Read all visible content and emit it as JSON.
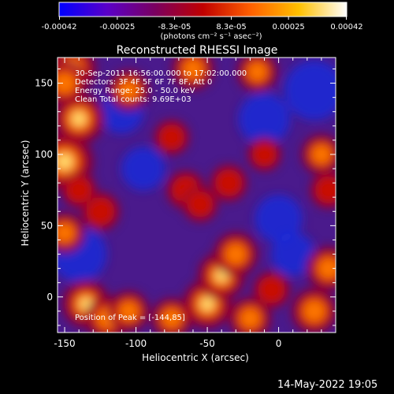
{
  "colorbar": {
    "tick_labels": [
      "-0.00042",
      "-0.00025",
      "-8.3e-05",
      "8.3e-05",
      "0.00025",
      "0.00042"
    ],
    "tick_values": [
      -0.00042,
      -0.00025,
      -8.3e-05,
      8.3e-05,
      0.00025,
      0.00042
    ],
    "range": [
      -0.00042,
      0.00042
    ],
    "units_text": "(photons cm⁻² s⁻¹ asec⁻²)",
    "colors": [
      "#0000ff",
      "#5a00c8",
      "#7a0060",
      "#c00000",
      "#ff6000",
      "#ffc000",
      "#ffffff"
    ]
  },
  "chart_data": {
    "type": "heatmap",
    "title": "Reconstructed RHESSI Image",
    "xlabel": "Heliocentric X (arcsec)",
    "ylabel": "Heliocentric Y (arcsec)",
    "xlim": [
      -155,
      40
    ],
    "ylim": [
      -25,
      168
    ],
    "x_ticks": [
      -150,
      -100,
      -50,
      0
    ],
    "y_ticks": [
      0,
      50,
      100,
      150
    ],
    "x_tick_labels": [
      "-150",
      "-100",
      "-50",
      "0"
    ],
    "y_tick_labels": [
      "0",
      "50",
      "100",
      "150"
    ],
    "annotations": [
      "30-Sep-2011 16:56:00.000 to 17:02:00.000",
      "Detectors: 3F 4F 5F 6F 7F 8F, Att 0",
      "Energy Range: 25.0 - 50.0 keV",
      "Clean      Total counts: 9.69E+03"
    ],
    "peak_text": "Position of Peak = [-144,85]",
    "hot_regions": [
      {
        "x": -145,
        "y": 160,
        "level": 0.75
      },
      {
        "x": -150,
        "y": 95,
        "level": 1.0
      },
      {
        "x": -140,
        "y": 125,
        "level": 0.8
      },
      {
        "x": -150,
        "y": 150,
        "level": 0.6
      },
      {
        "x": -105,
        "y": 145,
        "level": 0.5
      },
      {
        "x": -60,
        "y": 160,
        "level": 0.55
      },
      {
        "x": -15,
        "y": 158,
        "level": 0.5
      },
      {
        "x": -75,
        "y": 112,
        "level": 0.35
      },
      {
        "x": -65,
        "y": 75,
        "level": 0.45
      },
      {
        "x": -55,
        "y": 65,
        "level": 0.35
      },
      {
        "x": -35,
        "y": 80,
        "level": 0.4
      },
      {
        "x": -125,
        "y": 60,
        "level": 0.45
      },
      {
        "x": -150,
        "y": 45,
        "level": 0.5
      },
      {
        "x": -140,
        "y": 75,
        "level": 0.35
      },
      {
        "x": -135,
        "y": -5,
        "level": 0.7
      },
      {
        "x": -120,
        "y": -15,
        "level": 0.6
      },
      {
        "x": -105,
        "y": -10,
        "level": 0.5
      },
      {
        "x": -50,
        "y": -5,
        "level": 0.75
      },
      {
        "x": -40,
        "y": 15,
        "level": 0.7
      },
      {
        "x": -30,
        "y": 30,
        "level": 0.6
      },
      {
        "x": -20,
        "y": -15,
        "level": 0.55
      },
      {
        "x": -75,
        "y": -15,
        "level": 0.5
      },
      {
        "x": -5,
        "y": 5,
        "level": 0.4
      },
      {
        "x": 25,
        "y": -10,
        "level": 0.65
      },
      {
        "x": 35,
        "y": 20,
        "level": 0.6
      },
      {
        "x": 30,
        "y": 100,
        "level": 0.5
      },
      {
        "x": 35,
        "y": 75,
        "level": 0.4
      },
      {
        "x": -10,
        "y": 100,
        "level": 0.3
      }
    ],
    "cold_regions": [
      {
        "x": 25,
        "y": 145,
        "level": 0.9
      },
      {
        "x": -10,
        "y": 125,
        "level": 0.7
      },
      {
        "x": 0,
        "y": 55,
        "level": 0.6
      },
      {
        "x": -140,
        "y": 30,
        "level": 0.8
      },
      {
        "x": -95,
        "y": 90,
        "level": 0.5
      },
      {
        "x": -110,
        "y": 130,
        "level": 0.5
      },
      {
        "x": 10,
        "y": 30,
        "level": 0.5
      }
    ]
  },
  "timestamp": "14-May-2022 19:05"
}
